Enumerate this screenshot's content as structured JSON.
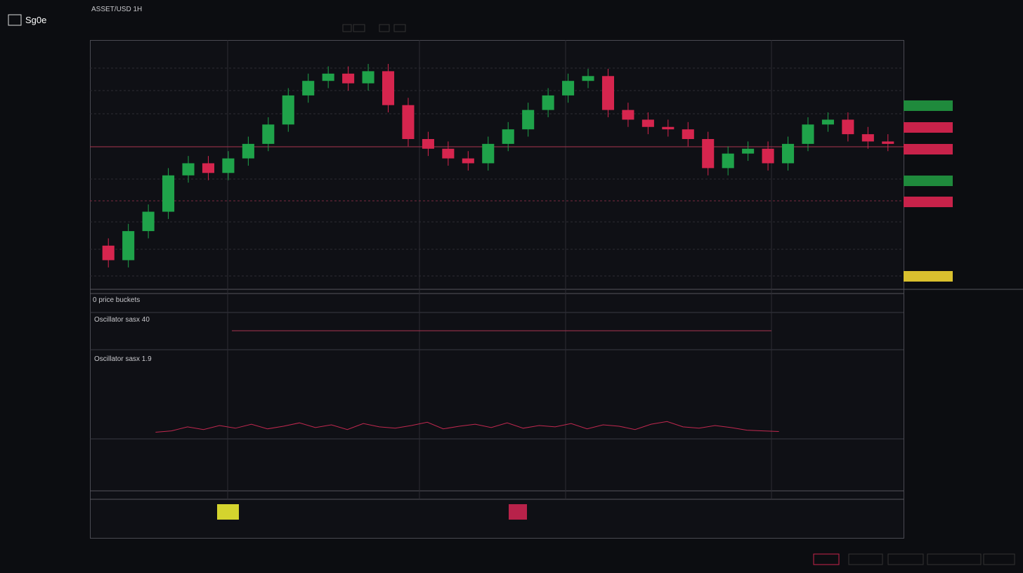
{
  "header": {
    "logo": "Sg0e",
    "ticker": "ASSET/USD 1H"
  },
  "chart": {
    "type": "candlestick",
    "ylim": [
      0,
      100
    ],
    "open": [
      16,
      10,
      22,
      30,
      45,
      50,
      46,
      52,
      58,
      66,
      78,
      84,
      87,
      83,
      88,
      74,
      60,
      56,
      52,
      50,
      58,
      64,
      72,
      78,
      84,
      86,
      72,
      68,
      65,
      64,
      60,
      48,
      54,
      56,
      50,
      58,
      66,
      68,
      62,
      59
    ],
    "high": [
      19,
      25,
      33,
      48,
      53,
      53,
      55,
      61,
      69,
      81,
      87,
      90,
      90,
      91,
      91,
      77,
      63,
      59,
      55,
      61,
      67,
      75,
      81,
      87,
      89,
      89,
      75,
      71,
      68,
      67,
      63,
      57,
      59,
      59,
      61,
      69,
      71,
      71,
      65,
      62
    ],
    "low": [
      7,
      7,
      19,
      27,
      42,
      43,
      43,
      49,
      55,
      63,
      75,
      81,
      80,
      80,
      71,
      57,
      53,
      49,
      47,
      47,
      55,
      61,
      69,
      75,
      81,
      69,
      65,
      62,
      61,
      57,
      45,
      45,
      51,
      47,
      47,
      55,
      63,
      59,
      56,
      55
    ],
    "close": [
      10,
      22,
      30,
      45,
      50,
      46,
      52,
      58,
      66,
      78,
      84,
      87,
      83,
      88,
      74,
      60,
      56,
      52,
      50,
      58,
      64,
      72,
      78,
      84,
      86,
      72,
      68,
      65,
      64,
      60,
      48,
      54,
      56,
      50,
      58,
      66,
      68,
      62,
      59,
      58
    ],
    "up_color": "#1fa34a",
    "down_color": "#d6254e"
  },
  "indicator": {
    "type": "line",
    "ylim": [
      0,
      100
    ],
    "color": "#c0284f",
    "values": [
      10,
      12,
      18,
      14,
      20,
      16,
      22,
      15,
      19,
      24,
      17,
      21,
      14,
      23,
      18,
      16,
      20,
      25,
      15,
      19,
      22,
      17,
      24,
      16,
      20,
      18,
      23,
      15,
      21,
      19,
      14,
      22,
      26,
      18,
      16,
      20,
      17,
      13,
      12,
      11
    ]
  },
  "panels": {
    "volume": "0 price buckets",
    "osc1": "Oscillator sasx 40",
    "osc2": "Oscillator sasx 1.9"
  }
}
